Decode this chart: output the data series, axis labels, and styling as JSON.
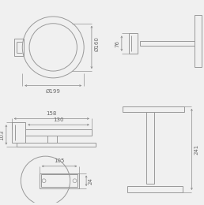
{
  "bg_color": "#f0f0f0",
  "line_color": "#999999",
  "dim_color": "#888888",
  "text_color": "#666666",
  "font_size": 5.0,
  "lw": 0.7
}
